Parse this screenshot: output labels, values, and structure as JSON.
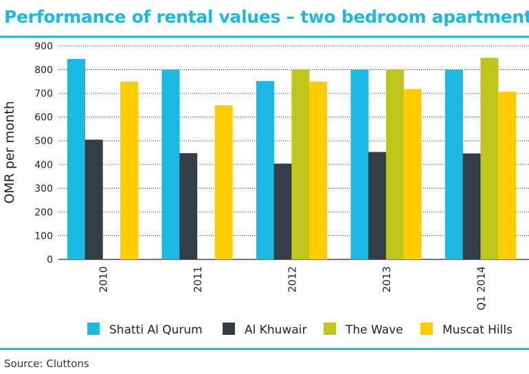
{
  "title": "Performance of rental values – two bedroom apartments",
  "source": "Source: Cluttons",
  "chart_data": {
    "type": "bar",
    "title": "Performance of rental values – two bedroom apartments",
    "xlabel": "",
    "ylabel": "OMR per month",
    "categories": [
      "2010",
      "2011",
      "2012",
      "2013",
      "Q1 2014"
    ],
    "ylim": [
      0,
      900
    ],
    "yticks": [
      0,
      100,
      200,
      300,
      400,
      500,
      600,
      700,
      800,
      900
    ],
    "grid": true,
    "legend_position": "bottom",
    "series": [
      {
        "name": "Shatti Al Qurum",
        "color": "#1ab8e2",
        "values": [
          845,
          800,
          752,
          800,
          800
        ]
      },
      {
        "name": "Al Khuwair",
        "color": "#333d47",
        "values": [
          505,
          448,
          404,
          453,
          447
        ]
      },
      {
        "name": "The Wave",
        "color": "#bfc51a",
        "values": [
          null,
          null,
          800,
          800,
          850
        ]
      },
      {
        "name": "Muscat Hills",
        "color": "#ffcc00",
        "values": [
          750,
          650,
          750,
          718,
          707
        ]
      }
    ]
  }
}
